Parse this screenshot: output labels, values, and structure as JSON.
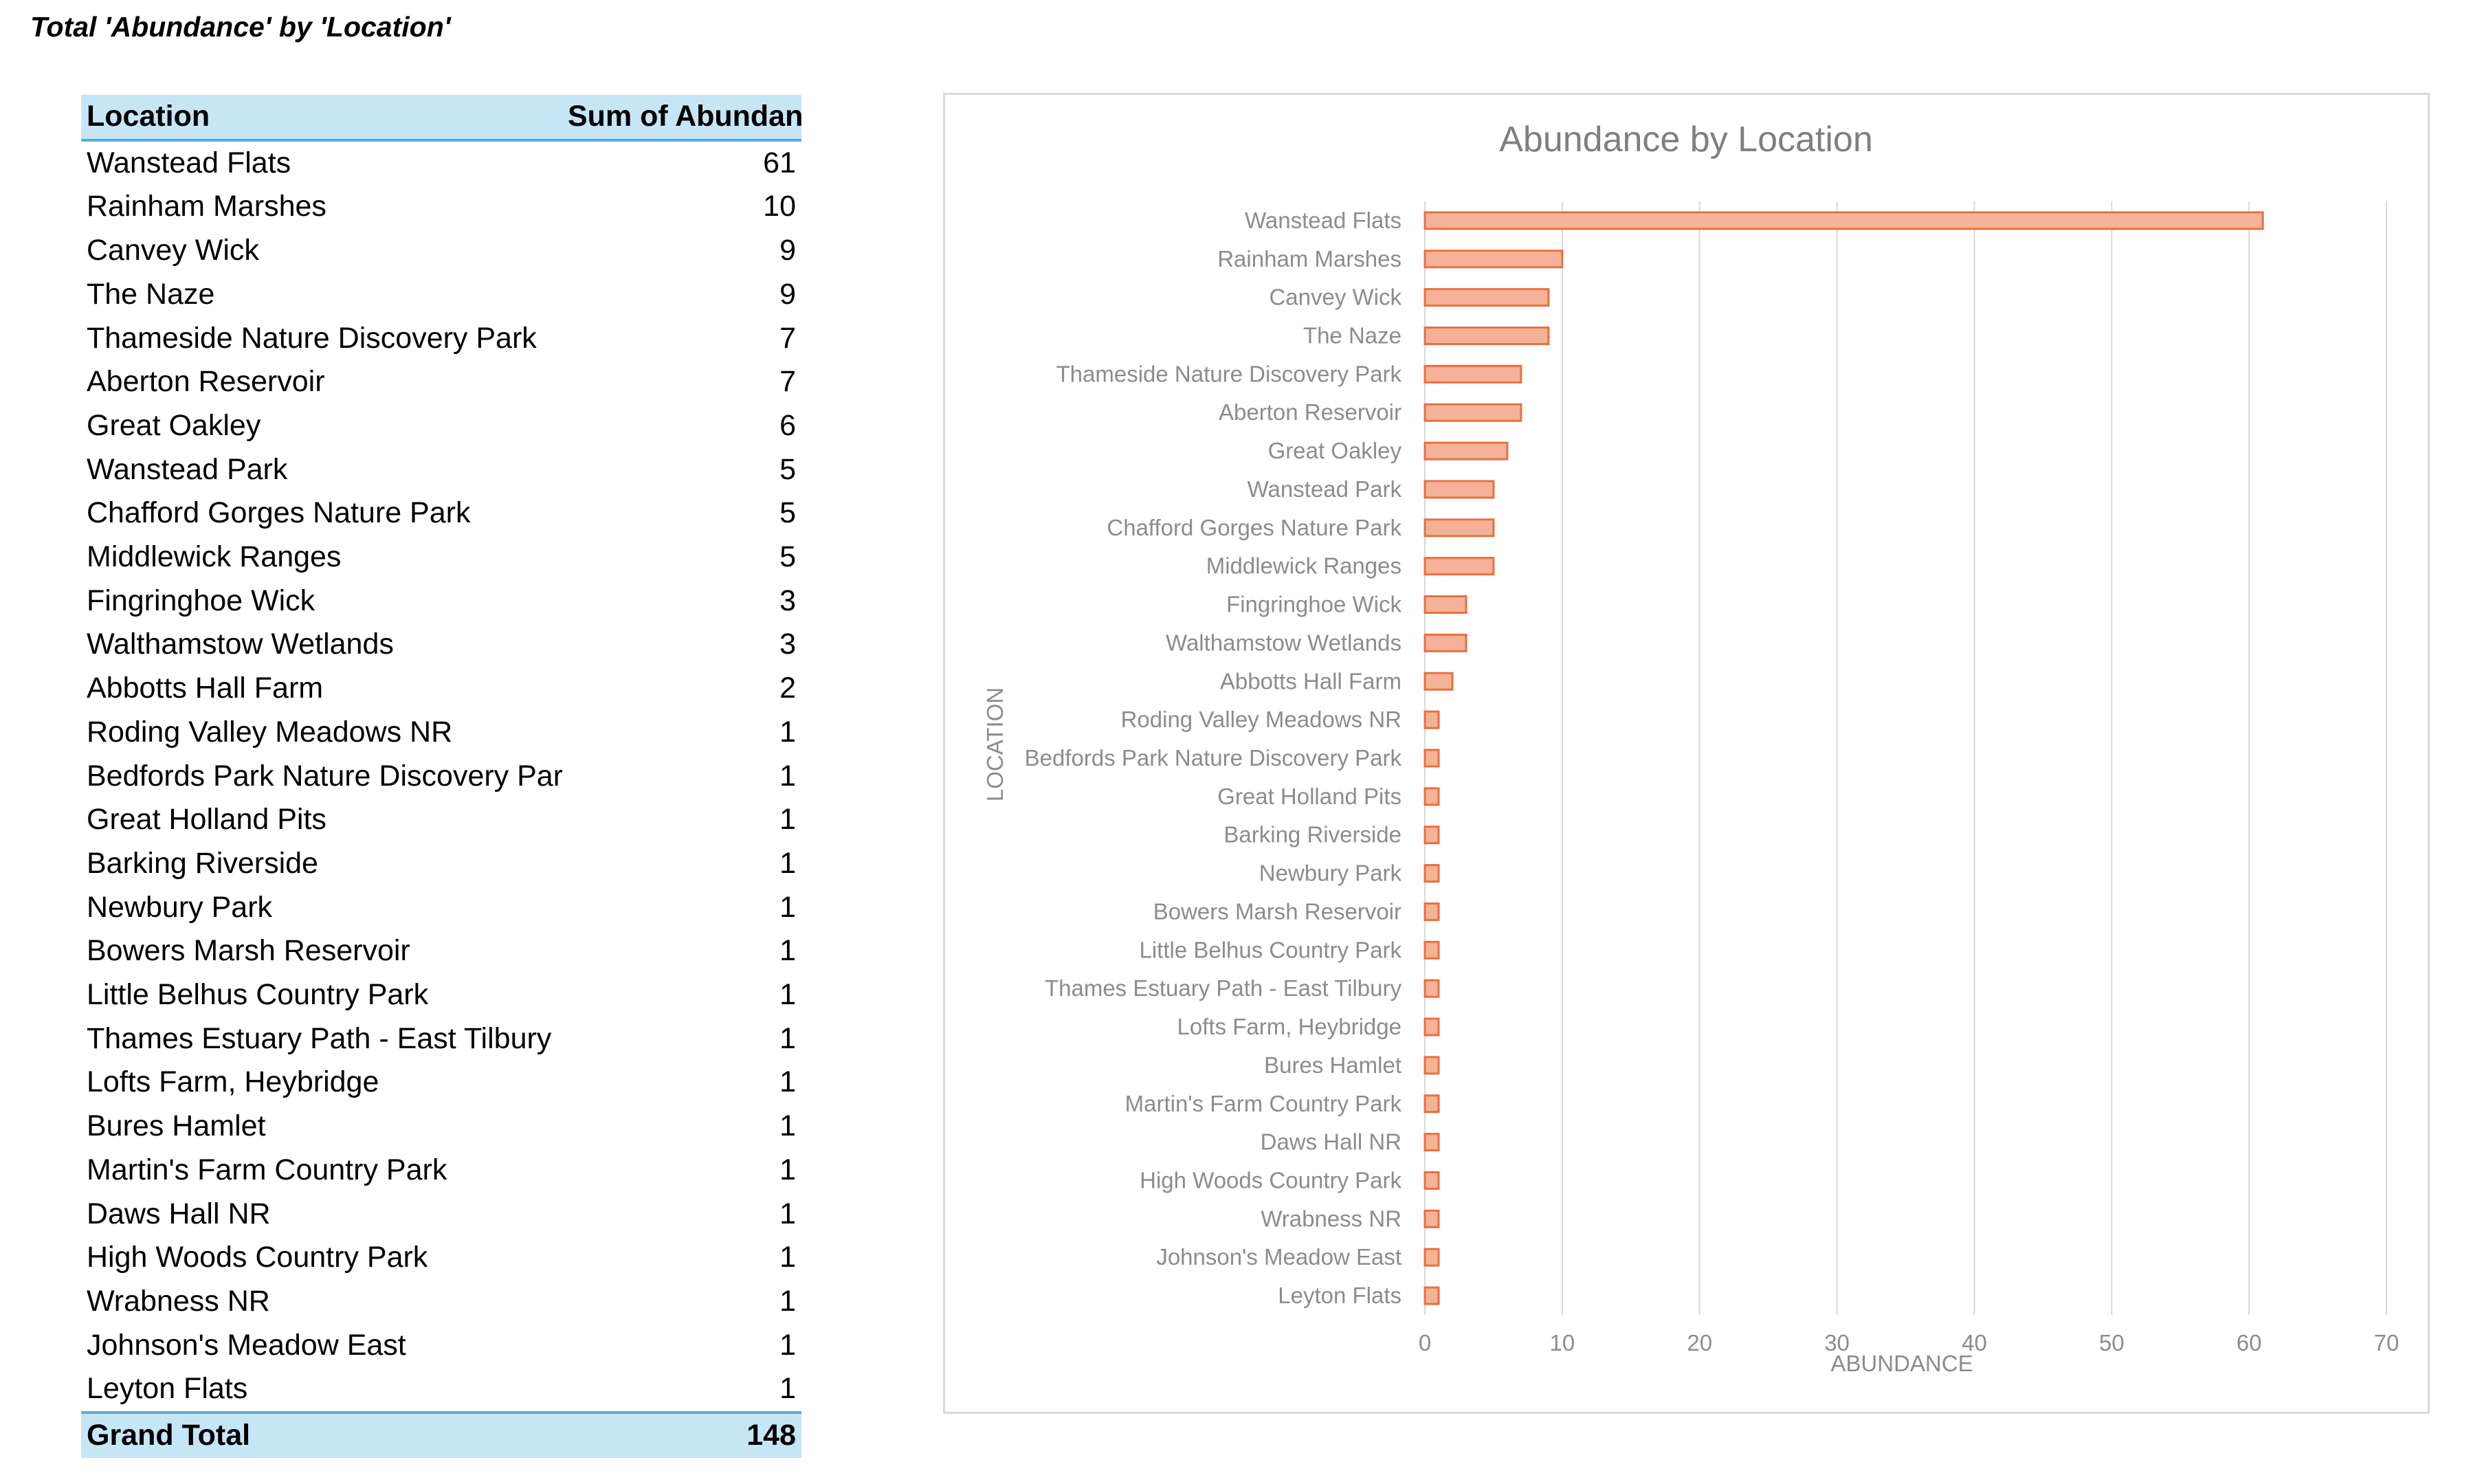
{
  "page_title": "Total 'Abundance' by 'Location'",
  "pivot_table": {
    "headers": [
      "Location",
      "Sum of Abundance"
    ],
    "rows": [
      [
        "Wanstead Flats",
        "61"
      ],
      [
        "Rainham Marshes",
        "10"
      ],
      [
        "Canvey Wick",
        "9"
      ],
      [
        "The Naze",
        "9"
      ],
      [
        "Thameside Nature Discovery Park",
        "7"
      ],
      [
        "Aberton Reservoir",
        "7"
      ],
      [
        "Great Oakley",
        "6"
      ],
      [
        "Wanstead Park",
        "5"
      ],
      [
        "Chafford Gorges Nature Park",
        "5"
      ],
      [
        "Middlewick Ranges",
        "5"
      ],
      [
        "Fingringhoe Wick",
        "3"
      ],
      [
        "Walthamstow Wetlands",
        "3"
      ],
      [
        "Abbotts Hall Farm",
        "2"
      ],
      [
        "Roding Valley Meadows NR",
        "1"
      ],
      [
        "Bedfords Park Nature Discovery Park",
        "1"
      ],
      [
        "Great Holland Pits",
        "1"
      ],
      [
        "Barking Riverside",
        "1"
      ],
      [
        "Newbury Park",
        "1"
      ],
      [
        "Bowers Marsh Reservoir",
        "1"
      ],
      [
        "Little Belhus Country Park",
        "1"
      ],
      [
        "Thames Estuary Path - East Tilbury",
        "1"
      ],
      [
        "Lofts Farm, Heybridge",
        "1"
      ],
      [
        "Bures Hamlet",
        "1"
      ],
      [
        "Martin's Farm Country Park",
        "1"
      ],
      [
        "Daws Hall NR",
        "1"
      ],
      [
        "High Woods Country Park",
        "1"
      ],
      [
        "Wrabness NR",
        "1"
      ],
      [
        "Johnson's Meadow East",
        "1"
      ],
      [
        "Leyton Flats",
        "1"
      ]
    ],
    "grand_total_label": "Grand Total",
    "grand_total_value": "148",
    "colors": {
      "header_fill": "#c6e6f6",
      "header_rule": "#5aaad8"
    }
  },
  "chart_data": {
    "type": "bar",
    "orientation": "horizontal",
    "title": "Abundance by Location",
    "xlabel": "ABUNDANCE",
    "ylabel": "LOCATION",
    "categories": [
      "Wanstead Flats",
      "Rainham Marshes",
      "Canvey Wick",
      "The Naze",
      "Thameside Nature Discovery Park",
      "Aberton Reservoir",
      "Great Oakley",
      "Wanstead Park",
      "Chafford Gorges Nature Park",
      "Middlewick Ranges",
      "Fingringhoe Wick",
      "Walthamstow Wetlands",
      "Abbotts Hall Farm",
      "Roding Valley Meadows NR",
      "Bedfords Park Nature Discovery Park",
      "Great Holland Pits",
      "Barking Riverside",
      "Newbury Park",
      "Bowers Marsh Reservoir",
      "Little Belhus Country Park",
      "Thames Estuary Path - East Tilbury",
      "Lofts Farm, Heybridge",
      "Bures Hamlet",
      "Martin's Farm Country Park",
      "Daws Hall NR",
      "High Woods Country Park",
      "Wrabness NR",
      "Johnson's Meadow East",
      "Leyton Flats"
    ],
    "values": [
      61,
      10,
      9,
      9,
      7,
      7,
      6,
      5,
      5,
      5,
      3,
      3,
      2,
      1,
      1,
      1,
      1,
      1,
      1,
      1,
      1,
      1,
      1,
      1,
      1,
      1,
      1,
      1,
      1
    ],
    "xlim": [
      0,
      70
    ],
    "xticks": [
      0,
      10,
      20,
      30,
      40,
      50,
      60,
      70
    ],
    "grid": true,
    "legend": "none",
    "colors": {
      "bar_fill": "#f4b399",
      "bar_stroke": "#e8703f",
      "grid": "#d9d9d9",
      "text": "#8c8c8c",
      "title": "#7f7f7f"
    }
  }
}
